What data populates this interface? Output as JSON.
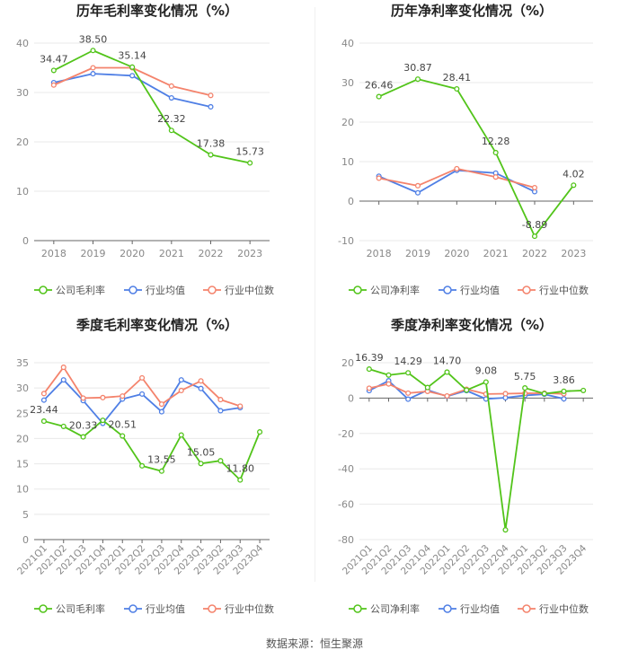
{
  "colors": {
    "company": "#52c41a",
    "avg": "#4f7fe5",
    "median": "#f4836c",
    "grid": "#e8e8e8",
    "axis": "#555555",
    "tick": "#888888",
    "label": "#444444"
  },
  "legend": {
    "company_gross": "公司毛利率",
    "company_net": "公司净利率",
    "avg": "行业均值",
    "median": "行业中位数"
  },
  "footer": {
    "source": "数据来源：恒生聚源"
  },
  "chart_data": [
    {
      "type": "line",
      "title": "历年毛利率变化情况（%）",
      "categories": [
        "2018",
        "2019",
        "2020",
        "2021",
        "2022",
        "2023"
      ],
      "ylim": [
        0,
        40
      ],
      "yticks": [
        0,
        10,
        20,
        30,
        40
      ],
      "series": [
        {
          "name": "公司毛利率",
          "key": "company",
          "values": [
            34.47,
            38.5,
            35.14,
            22.32,
            17.38,
            15.73
          ],
          "labels": [
            "34.47",
            "38.50",
            "35.14",
            "22.32",
            "17.38",
            "15.73"
          ]
        },
        {
          "name": "行业均值",
          "key": "avg",
          "values": [
            32.0,
            33.8,
            33.4,
            28.9,
            27.1,
            null
          ]
        },
        {
          "name": "行业中位数",
          "key": "median",
          "values": [
            31.5,
            35.0,
            35.0,
            31.3,
            29.4,
            null
          ]
        }
      ],
      "legend_keys": [
        "company_gross",
        "avg",
        "median"
      ],
      "rotate_x": false
    },
    {
      "type": "line",
      "title": "历年净利率变化情况（%）",
      "categories": [
        "2018",
        "2019",
        "2020",
        "2021",
        "2022",
        "2023"
      ],
      "ylim": [
        -10,
        40
      ],
      "yticks": [
        -10,
        0,
        10,
        20,
        30,
        40
      ],
      "series": [
        {
          "name": "公司净利率",
          "key": "company",
          "values": [
            26.46,
            30.87,
            28.41,
            12.28,
            -8.89,
            4.02
          ],
          "labels": [
            "26.46",
            "30.87",
            "28.41",
            "12.28",
            "-8.89",
            "4.02"
          ]
        },
        {
          "name": "行业均值",
          "key": "avg",
          "values": [
            6.3,
            2.1,
            7.8,
            7.1,
            2.4,
            null
          ]
        },
        {
          "name": "行业中位数",
          "key": "median",
          "values": [
            5.8,
            3.9,
            8.2,
            6.1,
            3.4,
            null
          ]
        }
      ],
      "legend_keys": [
        "company_net",
        "avg",
        "median"
      ],
      "rotate_x": false
    },
    {
      "type": "line",
      "title": "季度毛利率变化情况（%）",
      "categories": [
        "2021Q1",
        "2021Q2",
        "2021Q3",
        "2021Q4",
        "2022Q1",
        "2022Q2",
        "2022Q3",
        "2022Q4",
        "2023Q1",
        "2023Q2",
        "2023Q3",
        "2023Q4"
      ],
      "ylim": [
        0,
        35
      ],
      "yticks": [
        0,
        5,
        10,
        15,
        20,
        25,
        30,
        35
      ],
      "series": [
        {
          "name": "公司毛利率",
          "key": "company",
          "values": [
            23.44,
            22.4,
            20.33,
            23.6,
            20.51,
            14.6,
            13.55,
            20.7,
            15.05,
            15.6,
            11.8,
            21.3
          ],
          "labels": [
            "23.44",
            "",
            "20.33",
            "",
            "20.51",
            "",
            "13.55",
            "",
            "15.05",
            "",
            "11.80",
            ""
          ]
        },
        {
          "name": "行业均值",
          "key": "avg",
          "values": [
            27.6,
            31.6,
            27.5,
            23.0,
            27.8,
            28.8,
            25.3,
            31.6,
            29.9,
            25.5,
            26.1,
            null
          ]
        },
        {
          "name": "行业中位数",
          "key": "median",
          "values": [
            28.9,
            34.1,
            28.0,
            28.1,
            28.4,
            32.0,
            26.8,
            29.5,
            31.4,
            27.7,
            26.4,
            null
          ]
        }
      ],
      "legend_keys": [
        "company_gross",
        "avg",
        "median"
      ],
      "rotate_x": true
    },
    {
      "type": "line",
      "title": "季度净利率变化情况（%）",
      "categories": [
        "2021Q1",
        "2021Q2",
        "2021Q3",
        "2021Q4",
        "2022Q1",
        "2022Q2",
        "2022Q3",
        "2022Q4",
        "2023Q1",
        "2023Q2",
        "2023Q3",
        "2023Q4"
      ],
      "ylim": [
        -80,
        20
      ],
      "yticks": [
        -80,
        -60,
        -40,
        -20,
        0,
        20
      ],
      "series": [
        {
          "name": "公司净利率",
          "key": "company",
          "values": [
            16.39,
            13.0,
            14.29,
            6.0,
            14.7,
            4.5,
            9.08,
            -74.5,
            5.75,
            2.5,
            3.86,
            4.3
          ],
          "labels": [
            "16.39",
            "",
            "14.29",
            "",
            "14.70",
            "",
            "9.08",
            "",
            "5.75",
            "",
            "3.86",
            ""
          ]
        },
        {
          "name": "行业均值",
          "key": "avg",
          "values": [
            4.2,
            9.8,
            -0.6,
            4.5,
            1.0,
            4.2,
            -0.5,
            0.2,
            1.5,
            2.2,
            -0.4,
            null
          ]
        },
        {
          "name": "行业中位数",
          "key": "median",
          "values": [
            5.6,
            8.0,
            2.8,
            3.8,
            1.2,
            5.0,
            2.3,
            2.5,
            2.7,
            2.8,
            2.4,
            null
          ]
        }
      ],
      "legend_keys": [
        "company_net",
        "avg",
        "median"
      ],
      "rotate_x": true
    }
  ]
}
